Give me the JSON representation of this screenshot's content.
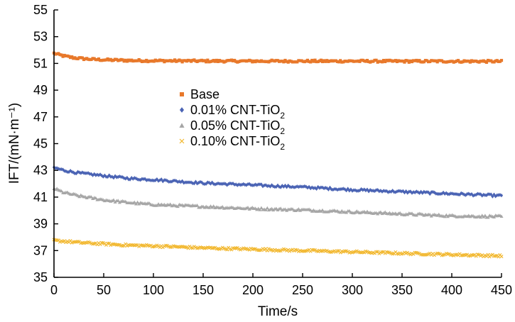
{
  "chart_data": {
    "type": "scatter",
    "xlabel": "Time/s",
    "ylabel": "IFT/(mN·m⁻¹)",
    "xlim": [
      0,
      450
    ],
    "ylim": [
      35,
      55
    ],
    "x_ticks": [
      "0",
      "50",
      "100",
      "150",
      "200",
      "250",
      "300",
      "350",
      "400",
      "450"
    ],
    "y_ticks": [
      "35",
      "37",
      "39",
      "41",
      "43",
      "45",
      "47",
      "49",
      "51",
      "53",
      "55"
    ],
    "grid": false,
    "legend_position": "center",
    "series": [
      {
        "name": "Base",
        "name_main": "Base",
        "name_sub": "",
        "marker": "square",
        "color": "#E8782A",
        "x": [
          0,
          10,
          20,
          30,
          40,
          50,
          75,
          100,
          150,
          200,
          250,
          300,
          350,
          400,
          450
        ],
        "y": [
          51.75,
          51.55,
          51.42,
          51.35,
          51.3,
          51.27,
          51.22,
          51.2,
          51.18,
          51.17,
          51.17,
          51.17,
          51.16,
          51.16,
          51.15
        ]
      },
      {
        "name": "0.01% CNT-TiO2",
        "name_main": "0.01% CNT-TiO",
        "name_sub": "2",
        "marker": "diamond",
        "color": "#4A63B4",
        "x": [
          0,
          10,
          25,
          50,
          75,
          100,
          150,
          200,
          250,
          300,
          350,
          400,
          450
        ],
        "y": [
          43.2,
          43.0,
          42.8,
          42.6,
          42.4,
          42.3,
          42.05,
          41.9,
          41.75,
          41.55,
          41.4,
          41.25,
          41.1
        ]
      },
      {
        "name": "0.05% CNT-TiO2",
        "name_main": "0.05% CNT-TiO",
        "name_sub": "2",
        "marker": "triangle",
        "color": "#A6A6A6",
        "x": [
          0,
          10,
          25,
          50,
          75,
          100,
          150,
          200,
          250,
          300,
          350,
          400,
          450
        ],
        "y": [
          41.65,
          41.35,
          41.1,
          40.8,
          40.6,
          40.45,
          40.3,
          40.15,
          40.05,
          39.9,
          39.75,
          39.6,
          39.55
        ]
      },
      {
        "name": "0.10% CNT-TiO2",
        "name_main": "0.10% CNT-TiO",
        "name_sub": "2",
        "marker": "x",
        "color": "#F2B830",
        "x": [
          0,
          10,
          25,
          50,
          75,
          100,
          150,
          200,
          250,
          300,
          350,
          400,
          450
        ],
        "y": [
          37.75,
          37.7,
          37.6,
          37.5,
          37.4,
          37.35,
          37.2,
          37.1,
          37.0,
          36.9,
          36.8,
          36.7,
          36.6
        ]
      }
    ]
  }
}
